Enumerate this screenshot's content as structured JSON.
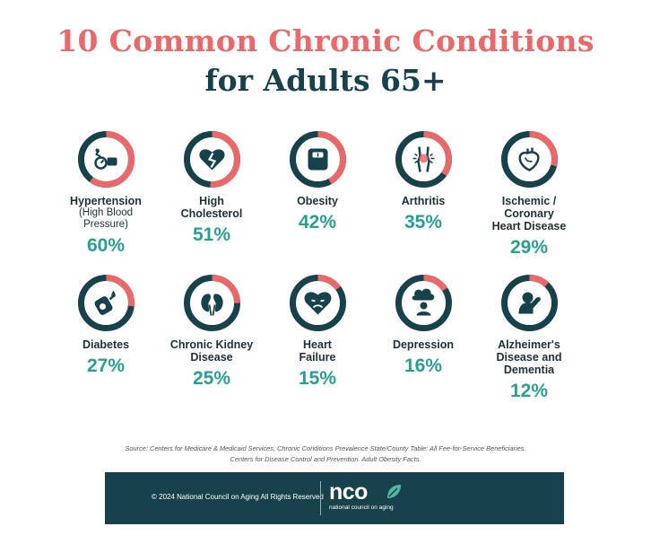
{
  "title": {
    "line1": "10 Common Chronic Conditions",
    "line2": "for Adults 65+"
  },
  "chart_data": {
    "type": "bar",
    "categories": [
      "Hypertension (High Blood Pressure)",
      "High Cholesterol",
      "Obesity",
      "Arthritis",
      "Ischemic / Coronary Heart Disease",
      "Diabetes",
      "Chronic Kidney Disease",
      "Heart Failure",
      "Depression",
      "Alzheimer's Disease and Dementia"
    ],
    "values": [
      60,
      51,
      42,
      35,
      29,
      27,
      25,
      15,
      16,
      12
    ]
  },
  "conditions": [
    {
      "label_lines": [
        "Hypertension"
      ],
      "sub_lines": [
        "(High Blood",
        "Pressure)"
      ],
      "pct": "60%",
      "value": 60,
      "icon": "blood-pressure-icon"
    },
    {
      "label_lines": [
        "High",
        "Cholesterol"
      ],
      "sub_lines": [],
      "pct": "51%",
      "value": 51,
      "icon": "broken-heart-icon"
    },
    {
      "label_lines": [
        "Obesity"
      ],
      "sub_lines": [],
      "pct": "42%",
      "value": 42,
      "icon": "scale-icon"
    },
    {
      "label_lines": [
        "Arthritis"
      ],
      "sub_lines": [],
      "pct": "35%",
      "value": 35,
      "icon": "knee-joint-icon"
    },
    {
      "label_lines": [
        "Ischemic /",
        "Coronary",
        "Heart Disease"
      ],
      "sub_lines": [],
      "pct": "29%",
      "value": 29,
      "icon": "heart-organ-icon"
    },
    {
      "label_lines": [
        "Diabetes"
      ],
      "sub_lines": [],
      "pct": "27%",
      "value": 27,
      "icon": "glucose-meter-icon"
    },
    {
      "label_lines": [
        "Chronic Kidney",
        "Disease"
      ],
      "sub_lines": [],
      "pct": "25%",
      "value": 25,
      "icon": "kidneys-icon"
    },
    {
      "label_lines": [
        "Heart",
        "Failure"
      ],
      "sub_lines": [],
      "pct": "15%",
      "value": 15,
      "icon": "sad-heart-icon"
    },
    {
      "label_lines": [
        "Depression"
      ],
      "sub_lines": [],
      "pct": "16%",
      "value": 16,
      "icon": "storm-cloud-person-icon"
    },
    {
      "label_lines": [
        "Alzheimer's",
        "Disease and",
        "Dementia"
      ],
      "sub_lines": [],
      "pct": "12%",
      "value": 12,
      "icon": "head-in-hands-icon"
    }
  ],
  "colors": {
    "title_accent": "#e9696b",
    "title_dark": "#17424b",
    "ring_filled": "#e9696b",
    "ring_track": "#17424b",
    "percent": "#2a9e8f",
    "footer_bg": "#17424b"
  },
  "source": {
    "line1": "Source: Centers for Medicare & Medicaid Services, Chronic Conditions Prevalence State/County Table: All Fee-for-Service Beneficiaries.",
    "line2": "Centers for Disease Control and Prevention. Adult Obesity Facts."
  },
  "footer": {
    "copyright": "© 2024 National Council on Aging All Rights Reserved",
    "logo": "ncoa",
    "logo_sub": "national council on aging"
  }
}
